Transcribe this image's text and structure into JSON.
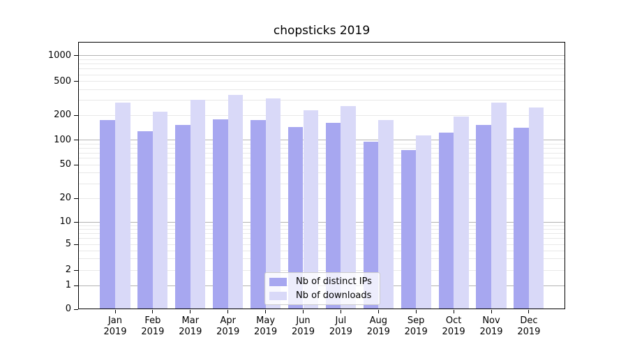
{
  "title": "chopsticks 2019",
  "legend": {
    "items": [
      {
        "label": "Nb of distinct IPs",
        "color": "#a7a7f0"
      },
      {
        "label": "Nb of downloads",
        "color": "#d9d9f8"
      }
    ]
  },
  "chart_data": {
    "type": "bar",
    "title": "chopsticks 2019",
    "categories": [
      "Jan 2019",
      "Feb 2019",
      "Mar 2019",
      "Apr 2019",
      "May 2019",
      "Jun 2019",
      "Jul 2019",
      "Aug 2019",
      "Sep 2019",
      "Oct 2019",
      "Nov 2019",
      "Dec 2019"
    ],
    "series": [
      {
        "name": "Nb of distinct IPs",
        "color": "#a7a7f0",
        "values": [
          176,
          128,
          152,
          180,
          174,
          145,
          162,
          95,
          76,
          123,
          154,
          142
        ]
      },
      {
        "name": "Nb of downloads",
        "color": "#d9d9f8",
        "values": [
          284,
          222,
          303,
          346,
          318,
          230,
          257,
          174,
          113,
          195,
          281,
          246
        ]
      }
    ],
    "xlabel": "",
    "ylabel": "",
    "yscale": "symlog",
    "yticks": [
      0,
      1,
      2,
      5,
      10,
      20,
      50,
      100,
      200,
      500,
      1000
    ],
    "ylim": [
      0,
      1500
    ],
    "grid": "horizontal major and minor gridlines, log-decade minors",
    "grid_major_color": "#b3b3b3",
    "grid_minor_color": "#e8e8e8",
    "legend_position": "lower center inside axes"
  }
}
